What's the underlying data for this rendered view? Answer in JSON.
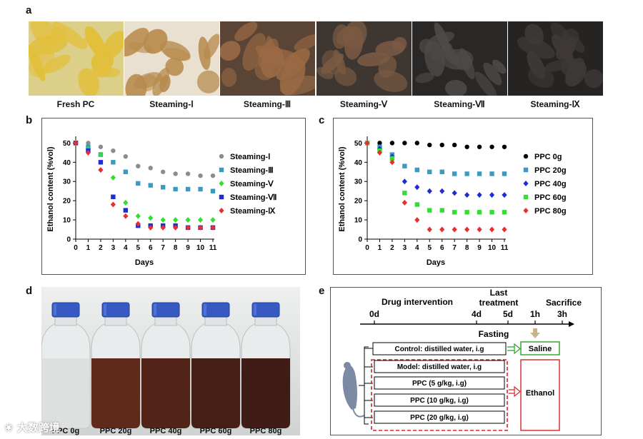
{
  "panel_a": {
    "letter": "a",
    "photos": [
      {
        "caption": "Fresh PC",
        "bg": "#dccf8a",
        "fg": "#e2bf3a"
      },
      {
        "caption": "Steaming-Ⅰ",
        "bg": "#e9e0cf",
        "fg": "#b78a4c"
      },
      {
        "caption": "Steaming-Ⅲ",
        "bg": "#5a4435",
        "fg": "#9b6a45"
      },
      {
        "caption": "Steaming-Ⅴ",
        "bg": "#3d3631",
        "fg": "#7a5a43"
      },
      {
        "caption": "Steaming-Ⅶ",
        "bg": "#2a2827",
        "fg": "#4e4a48"
      },
      {
        "caption": "Steaming-Ⅸ",
        "bg": "#262423",
        "fg": "#3e3a38"
      }
    ]
  },
  "chart_data": [
    {
      "panel": "b",
      "type": "scatter",
      "title": "",
      "xlabel": "Days",
      "ylabel": "Ethanol content (%vol)",
      "xlim": [
        0,
        11
      ],
      "ylim": [
        0,
        52
      ],
      "xticks": [
        0,
        1,
        2,
        3,
        4,
        5,
        6,
        7,
        8,
        9,
        10,
        11
      ],
      "yticks": [
        0,
        10,
        20,
        30,
        40,
        50
      ],
      "legend_position": "right",
      "x": [
        0,
        1,
        2,
        3,
        4,
        5,
        6,
        7,
        8,
        9,
        10,
        11
      ],
      "series": [
        {
          "name": "Steaming-Ⅰ",
          "color": "#8c8c8c",
          "marker": "circle",
          "values": [
            50,
            50,
            48,
            46,
            43,
            38,
            37,
            35,
            34,
            34,
            33,
            33
          ]
        },
        {
          "name": "Steaming-Ⅲ",
          "color": "#3a9ac0",
          "marker": "square",
          "values": [
            50,
            48,
            44,
            40,
            35,
            29,
            28,
            27,
            26,
            26,
            26,
            25
          ]
        },
        {
          "name": "Steaming-Ⅴ",
          "color": "#33dd33",
          "marker": "diamond",
          "values": [
            50,
            47,
            44,
            32,
            19,
            12,
            11,
            10,
            10,
            10,
            10,
            10
          ]
        },
        {
          "name": "Steaming-Ⅶ",
          "color": "#1f2bd4",
          "marker": "square",
          "values": [
            50,
            46,
            40,
            22,
            15,
            7,
            7,
            7,
            7,
            6,
            6,
            6
          ]
        },
        {
          "name": "Steaming-Ⅸ",
          "color": "#e63030",
          "marker": "diamond",
          "values": [
            50,
            45,
            36,
            18,
            12,
            8,
            6,
            6,
            6,
            6,
            6,
            6
          ]
        }
      ]
    },
    {
      "panel": "c",
      "type": "scatter",
      "title": "",
      "xlabel": "Days",
      "ylabel": "Ethanol content (%vol)",
      "xlim": [
        0,
        11
      ],
      "ylim": [
        0,
        52
      ],
      "xticks": [
        0,
        1,
        2,
        3,
        4,
        5,
        6,
        7,
        8,
        9,
        10,
        11
      ],
      "yticks": [
        0,
        10,
        20,
        30,
        40,
        50
      ],
      "legend_position": "right",
      "x": [
        0,
        1,
        2,
        3,
        4,
        5,
        6,
        7,
        8,
        9,
        10,
        11
      ],
      "series": [
        {
          "name": "PPC 0g",
          "color": "#000000",
          "marker": "circle",
          "values": [
            50,
            50,
            50,
            50,
            50,
            49,
            49,
            49,
            48,
            48,
            48,
            48
          ]
        },
        {
          "name": "PPC 20g",
          "color": "#3a9ac0",
          "marker": "square",
          "values": [
            50,
            48,
            44,
            38,
            36,
            35,
            35,
            34,
            34,
            34,
            34,
            34
          ]
        },
        {
          "name": "PPC 40g",
          "color": "#1f2bd4",
          "marker": "diamond",
          "values": [
            50,
            47,
            43,
            30,
            27,
            25,
            25,
            24,
            23,
            23,
            23,
            23
          ]
        },
        {
          "name": "PPC 60g",
          "color": "#33dd33",
          "marker": "square",
          "values": [
            50,
            46,
            42,
            24,
            18,
            15,
            15,
            14,
            14,
            14,
            14,
            14
          ]
        },
        {
          "name": "PPC 80g",
          "color": "#e63030",
          "marker": "diamond",
          "values": [
            50,
            45,
            40,
            19,
            10,
            5,
            5,
            5,
            5,
            5,
            5,
            5
          ]
        }
      ]
    }
  ],
  "panel_b": {
    "letter": "b"
  },
  "panel_c": {
    "letter": "c"
  },
  "panel_d": {
    "letter": "d",
    "watermark": "大数跨境",
    "bottles": [
      {
        "label": "PPC 0g",
        "liquid": "#d9dcd8"
      },
      {
        "label": "PPC 20g",
        "liquid": "#5a1f10"
      },
      {
        "label": "PPC 40g",
        "liquid": "#4a180c"
      },
      {
        "label": "PPC 60g",
        "liquid": "#3d140b"
      },
      {
        "label": "PPC 80g",
        "liquid": "#361109"
      }
    ]
  },
  "panel_e": {
    "letter": "e",
    "timeline": {
      "drug_intervention": "Drug intervention",
      "last_treatment_1": "Last",
      "last_treatment_2": "treatment",
      "sacrifice": "Sacrifice",
      "fasting": "Fasting",
      "ticks": [
        "0d",
        "4d",
        "5d",
        "1h",
        "3h"
      ]
    },
    "groups": [
      "Control: distilled water, i.g",
      "Model: distilled water, i.g",
      "PPC (5 g/kg, i.g)",
      "PPC (10 g/kg, i.g)",
      "PPC (20 g/kg, i.g)"
    ],
    "saline": "Saline",
    "ethanol": "Ethanol",
    "colors": {
      "control": "#2ca02c",
      "model": "#d62728",
      "arrow": "#c8b48a"
    }
  }
}
